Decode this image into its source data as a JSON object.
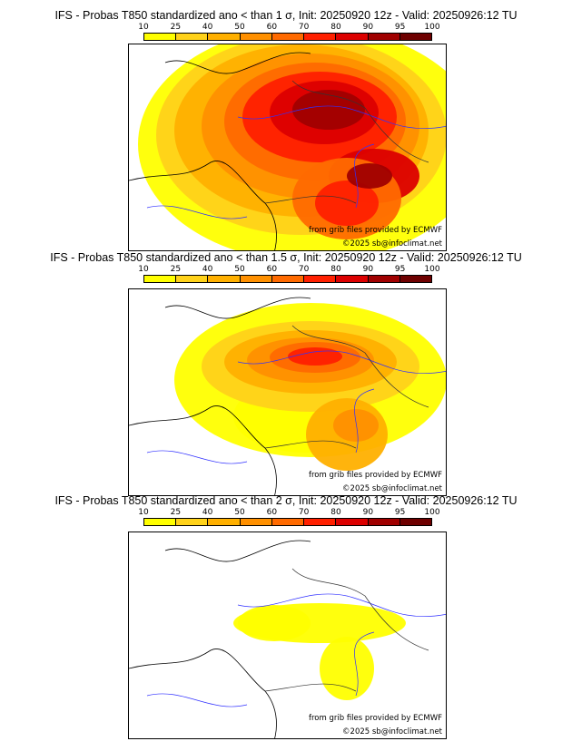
{
  "legend": {
    "ticks": [
      "10",
      "25",
      "40",
      "50",
      "60",
      "70",
      "80",
      "90",
      "95",
      "100"
    ],
    "colors": [
      "#ffff00",
      "#ffd21a",
      "#ffb000",
      "#ff9000",
      "#ff6a00",
      "#ff2000",
      "#dc0000",
      "#a00000",
      "#6e0000"
    ]
  },
  "panels": [
    {
      "title": "IFS - Probas T850  standardized ano < than 1 σ, Init: 20250920 12z - Valid: 20250926:12 TU",
      "credit1": "from grib files provided by ECMWF",
      "credit2": "©2025 sb@infoclimat.net"
    },
    {
      "title": "IFS - Probas T850  standardized ano < than 1.5 σ, Init: 20250920 12z - Valid: 20250926:12 TU",
      "credit1": "from grib files provided by ECMWF",
      "credit2": "©2025 sb@infoclimat.net"
    },
    {
      "title": "IFS - Probas T850  standardized ano < than 2 σ, Init: 20250920 12z - Valid: 20250926:12 TU",
      "credit1": "from grib files provided by ECMWF",
      "credit2": "©2025 sb@infoclimat.net"
    }
  ]
}
